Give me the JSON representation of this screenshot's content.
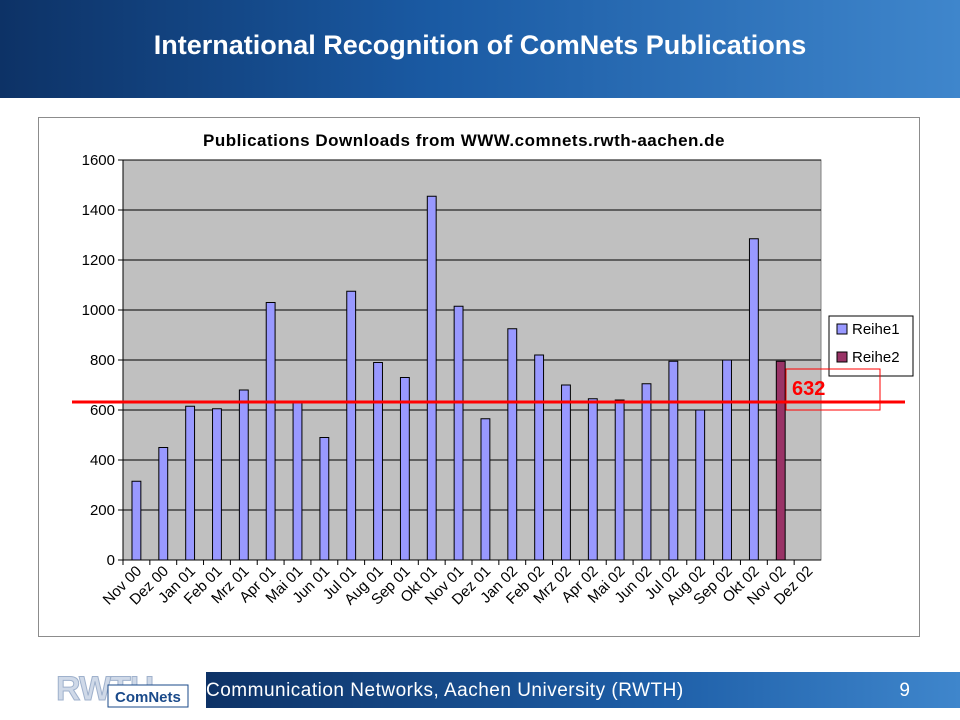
{
  "header": {
    "title": "International Recognition of ComNets Publications"
  },
  "footer": {
    "text": "Communication Networks, Aachen University (RWTH)",
    "page": "9"
  },
  "logo": {
    "top_text": "RWTH",
    "bottom_text": "ComNets"
  },
  "chart_data": {
    "type": "bar",
    "title": "Publications Downloads from WWW.comnets.rwth-aachen.de",
    "xlabel": "",
    "ylabel": "",
    "ylim": [
      0,
      1600
    ],
    "yticks": [
      0,
      200,
      400,
      600,
      800,
      1000,
      1200,
      1400,
      1600
    ],
    "categories": [
      "Nov 00",
      "Dez 00",
      "Jan 01",
      "Feb 01",
      "Mrz 01",
      "Apr 01",
      "Mai 01",
      "Jun 01",
      "Jul 01",
      "Aug 01",
      "Sep 01",
      "Okt 01",
      "Nov 01",
      "Dez 01",
      "Jan 02",
      "Feb 02",
      "Mrz 02",
      "Apr 02",
      "Mai 02",
      "Jun 02",
      "Jul 02",
      "Aug 02",
      "Sep 02",
      "Okt 02",
      "Nov 02",
      "Dez 02"
    ],
    "series": [
      {
        "name": "Reihe1",
        "color": "#9999ff",
        "values": [
          315,
          450,
          615,
          605,
          680,
          1030,
          630,
          490,
          1075,
          790,
          730,
          1455,
          1015,
          565,
          925,
          820,
          700,
          645,
          640,
          705,
          795,
          600,
          800,
          1285,
          null,
          null
        ]
      },
      {
        "name": "Reihe2",
        "color": "#993366",
        "values": [
          null,
          null,
          null,
          null,
          null,
          null,
          null,
          null,
          null,
          null,
          null,
          null,
          null,
          null,
          null,
          null,
          null,
          null,
          null,
          null,
          null,
          null,
          null,
          null,
          795,
          null
        ]
      }
    ],
    "reference_line": {
      "value": 632,
      "label": "632",
      "color": "#ff0000"
    },
    "plot_background": "#c0c0c0",
    "legend": "right",
    "grid": true
  }
}
